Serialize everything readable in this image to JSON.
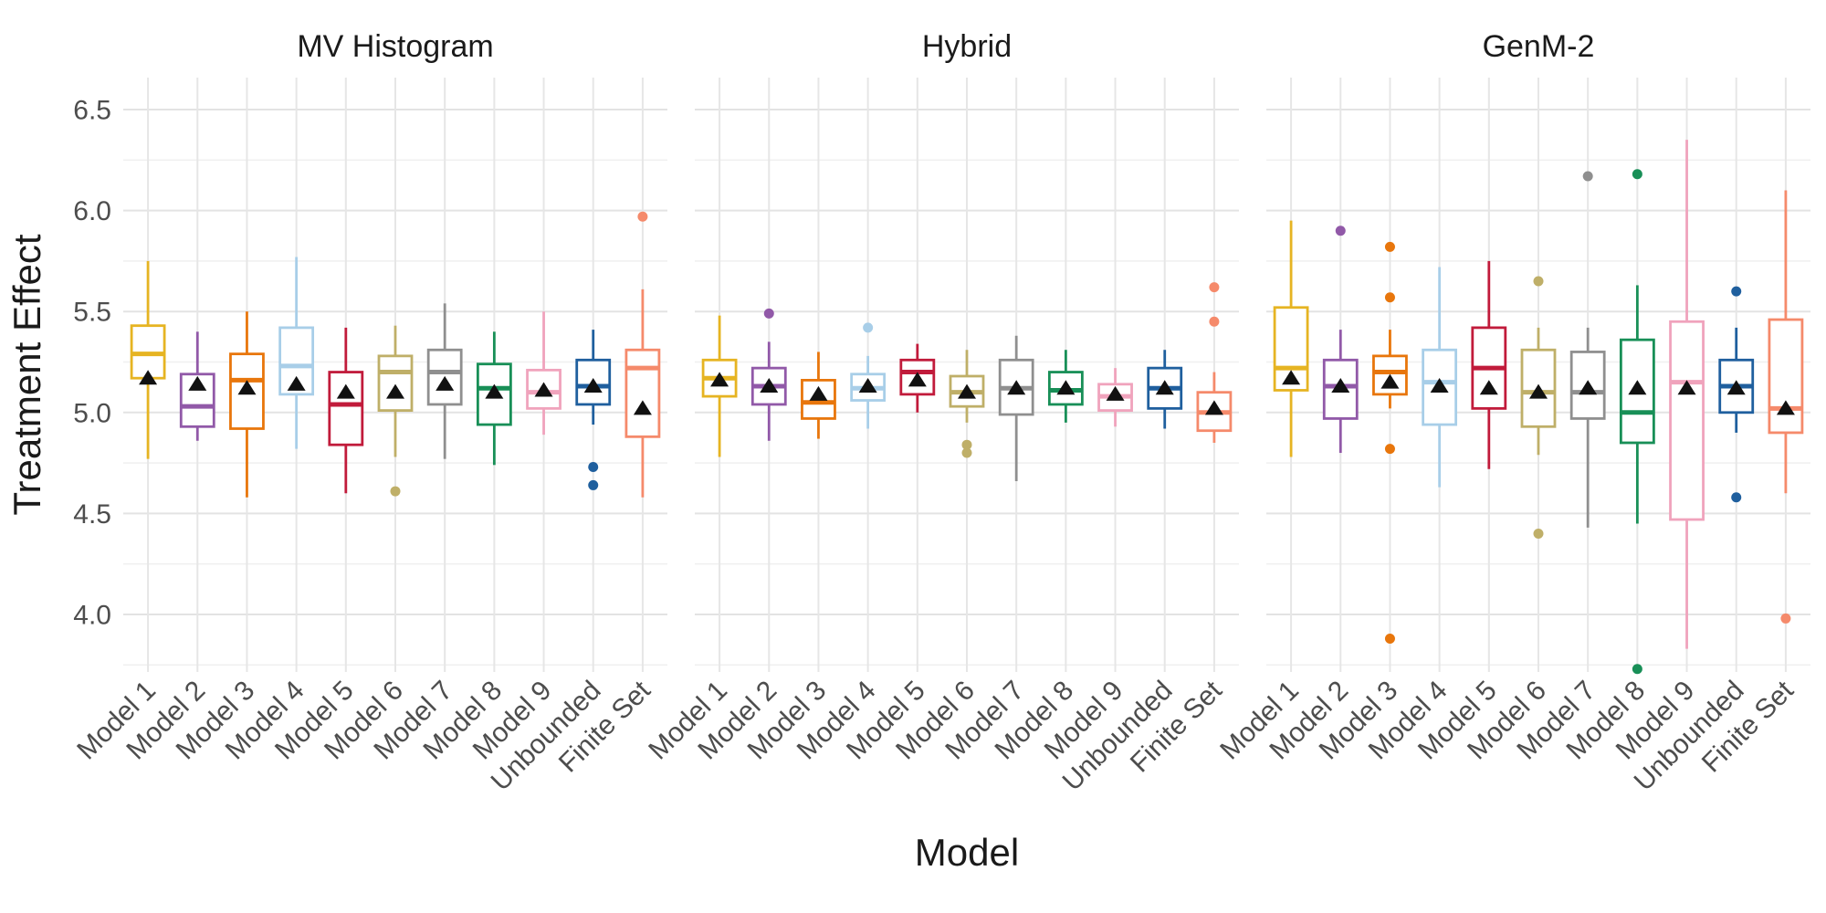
{
  "page": {
    "background_color": "#ffffff",
    "text_color": "#1a1a1a",
    "tick_color": "#4d4d4d",
    "grid_major_color": "#e3e3e3",
    "grid_minor_color": "#f0f0f0"
  },
  "chart_data": {
    "type": "boxplot",
    "title": "",
    "xlabel": "Model",
    "ylabel": "Treatment Effect",
    "legend": "none",
    "grid": true,
    "ylim": [
      3.7,
      6.66
    ],
    "ytick_labels": [
      "4.0",
      "4.5",
      "5.0",
      "5.5",
      "6.0",
      "6.5"
    ],
    "ytick_values": [
      4.0,
      4.5,
      5.0,
      5.5,
      6.0,
      6.5
    ],
    "categories": [
      "Model 1",
      "Model 2",
      "Model 3",
      "Model 4",
      "Model 5",
      "Model 6",
      "Model 7",
      "Model 8",
      "Model 9",
      "Unbounded",
      "Finite Set"
    ],
    "colors": [
      "#E6B422",
      "#9159A8",
      "#E8760C",
      "#A8CEE8",
      "#C11B3B",
      "#BFAF68",
      "#8F8F8F",
      "#188F57",
      "#F0A3BC",
      "#1F5F9E",
      "#F58A6B"
    ],
    "mean_marker": "triangle",
    "mean_marker_color": "#111111",
    "facets": [
      {
        "label": "MV Histogram",
        "boxes": [
          {
            "low": 4.77,
            "q1": 5.17,
            "median": 5.29,
            "q3": 5.43,
            "high": 5.75,
            "mean": 5.17,
            "outliers": []
          },
          {
            "low": 4.86,
            "q1": 4.93,
            "median": 5.03,
            "q3": 5.19,
            "high": 5.4,
            "mean": 5.14,
            "outliers": []
          },
          {
            "low": 4.58,
            "q1": 4.92,
            "median": 5.16,
            "q3": 5.29,
            "high": 5.5,
            "mean": 5.12,
            "outliers": []
          },
          {
            "low": 4.82,
            "q1": 5.09,
            "median": 5.23,
            "q3": 5.42,
            "high": 5.77,
            "mean": 5.14,
            "outliers": []
          },
          {
            "low": 4.6,
            "q1": 4.84,
            "median": 5.04,
            "q3": 5.2,
            "high": 5.42,
            "mean": 5.1,
            "outliers": []
          },
          {
            "low": 4.78,
            "q1": 5.01,
            "median": 5.2,
            "q3": 5.28,
            "high": 5.43,
            "mean": 5.1,
            "outliers": [
              4.61
            ]
          },
          {
            "low": 4.77,
            "q1": 5.04,
            "median": 5.2,
            "q3": 5.31,
            "high": 5.54,
            "mean": 5.14,
            "outliers": []
          },
          {
            "low": 4.74,
            "q1": 4.94,
            "median": 5.12,
            "q3": 5.24,
            "high": 5.4,
            "mean": 5.1,
            "outliers": []
          },
          {
            "low": 4.89,
            "q1": 5.02,
            "median": 5.1,
            "q3": 5.21,
            "high": 5.5,
            "mean": 5.11,
            "outliers": []
          },
          {
            "low": 4.94,
            "q1": 5.04,
            "median": 5.13,
            "q3": 5.26,
            "high": 5.41,
            "mean": 5.13,
            "outliers": [
              4.73,
              4.64
            ]
          },
          {
            "low": 4.58,
            "q1": 4.88,
            "median": 5.22,
            "q3": 5.31,
            "high": 5.61,
            "mean": 5.02,
            "outliers": [
              5.97
            ]
          }
        ]
      },
      {
        "label": "Hybrid",
        "boxes": [
          {
            "low": 4.78,
            "q1": 5.08,
            "median": 5.17,
            "q3": 5.26,
            "high": 5.48,
            "mean": 5.16,
            "outliers": []
          },
          {
            "low": 4.86,
            "q1": 5.04,
            "median": 5.13,
            "q3": 5.22,
            "high": 5.35,
            "mean": 5.13,
            "outliers": [
              5.49
            ]
          },
          {
            "low": 4.87,
            "q1": 4.97,
            "median": 5.05,
            "q3": 5.16,
            "high": 5.3,
            "mean": 5.09,
            "outliers": []
          },
          {
            "low": 4.92,
            "q1": 5.06,
            "median": 5.12,
            "q3": 5.19,
            "high": 5.28,
            "mean": 5.13,
            "outliers": [
              5.42
            ]
          },
          {
            "low": 5.0,
            "q1": 5.09,
            "median": 5.2,
            "q3": 5.26,
            "high": 5.34,
            "mean": 5.16,
            "outliers": []
          },
          {
            "low": 4.95,
            "q1": 5.03,
            "median": 5.1,
            "q3": 5.18,
            "high": 5.31,
            "mean": 5.1,
            "outliers": [
              4.84,
              4.8
            ]
          },
          {
            "low": 4.66,
            "q1": 4.99,
            "median": 5.12,
            "q3": 5.26,
            "high": 5.38,
            "mean": 5.12,
            "outliers": []
          },
          {
            "low": 4.95,
            "q1": 5.04,
            "median": 5.11,
            "q3": 5.2,
            "high": 5.31,
            "mean": 5.12,
            "outliers": []
          },
          {
            "low": 4.93,
            "q1": 5.01,
            "median": 5.08,
            "q3": 5.14,
            "high": 5.22,
            "mean": 5.09,
            "outliers": []
          },
          {
            "low": 4.92,
            "q1": 5.02,
            "median": 5.12,
            "q3": 5.22,
            "high": 5.31,
            "mean": 5.12,
            "outliers": []
          },
          {
            "low": 4.85,
            "q1": 4.91,
            "median": 5.0,
            "q3": 5.1,
            "high": 5.2,
            "mean": 5.02,
            "outliers": [
              5.62,
              5.45
            ]
          }
        ]
      },
      {
        "label": "GenM-2",
        "boxes": [
          {
            "low": 4.78,
            "q1": 5.11,
            "median": 5.22,
            "q3": 5.52,
            "high": 5.95,
            "mean": 5.17,
            "outliers": []
          },
          {
            "low": 4.8,
            "q1": 4.97,
            "median": 5.13,
            "q3": 5.26,
            "high": 5.41,
            "mean": 5.13,
            "outliers": [
              5.9
            ]
          },
          {
            "low": 5.02,
            "q1": 5.09,
            "median": 5.2,
            "q3": 5.28,
            "high": 5.41,
            "mean": 5.15,
            "outliers": [
              5.82,
              5.57,
              4.82,
              3.88
            ]
          },
          {
            "low": 4.63,
            "q1": 4.94,
            "median": 5.15,
            "q3": 5.31,
            "high": 5.72,
            "mean": 5.13,
            "outliers": []
          },
          {
            "low": 4.72,
            "q1": 5.02,
            "median": 5.22,
            "q3": 5.42,
            "high": 5.75,
            "mean": 5.12,
            "outliers": []
          },
          {
            "low": 4.79,
            "q1": 4.93,
            "median": 5.1,
            "q3": 5.31,
            "high": 5.42,
            "mean": 5.1,
            "outliers": [
              5.65,
              4.4
            ]
          },
          {
            "low": 4.43,
            "q1": 4.97,
            "median": 5.1,
            "q3": 5.3,
            "high": 5.42,
            "mean": 5.12,
            "outliers": [
              6.17
            ]
          },
          {
            "low": 4.45,
            "q1": 4.85,
            "median": 5.0,
            "q3": 5.36,
            "high": 5.63,
            "mean": 5.12,
            "outliers": [
              6.18,
              3.73
            ]
          },
          {
            "low": 3.83,
            "q1": 4.47,
            "median": 5.15,
            "q3": 5.45,
            "high": 6.35,
            "mean": 5.12,
            "outliers": []
          },
          {
            "low": 4.9,
            "q1": 5.0,
            "median": 5.13,
            "q3": 5.26,
            "high": 5.42,
            "mean": 5.12,
            "outliers": [
              5.6,
              4.58
            ]
          },
          {
            "low": 4.6,
            "q1": 4.9,
            "median": 5.02,
            "q3": 5.46,
            "high": 6.1,
            "mean": 5.02,
            "outliers": [
              3.98
            ]
          }
        ]
      }
    ]
  }
}
